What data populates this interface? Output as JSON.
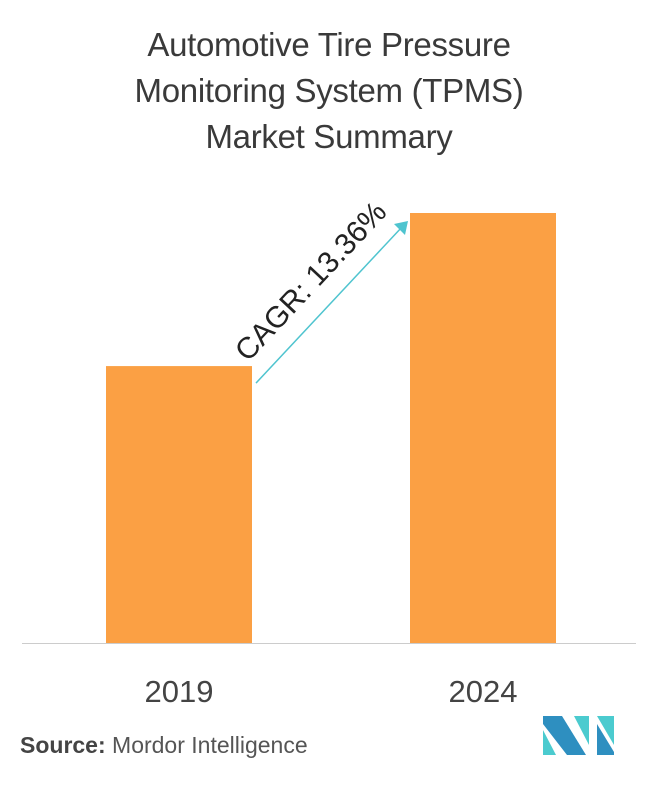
{
  "title_lines": [
    "Automotive Tire Pressure",
    "Monitoring System (TPMS)",
    "Market Summary"
  ],
  "chart_data": {
    "type": "bar",
    "categories": [
      "2019",
      "2024"
    ],
    "values": [
      0.644,
      1.0
    ],
    "ylim": [
      0,
      1.0
    ],
    "grid": false,
    "bar_color": "#FBA044",
    "annotation": {
      "text": "CAGR: 13.36%",
      "arrow_color": "#4FC4CF"
    }
  },
  "source": {
    "label": "Source:",
    "value": "Mordor Intelligence"
  },
  "logo": {
    "colors": [
      "#2E8FC0",
      "#4BCBCF"
    ]
  }
}
